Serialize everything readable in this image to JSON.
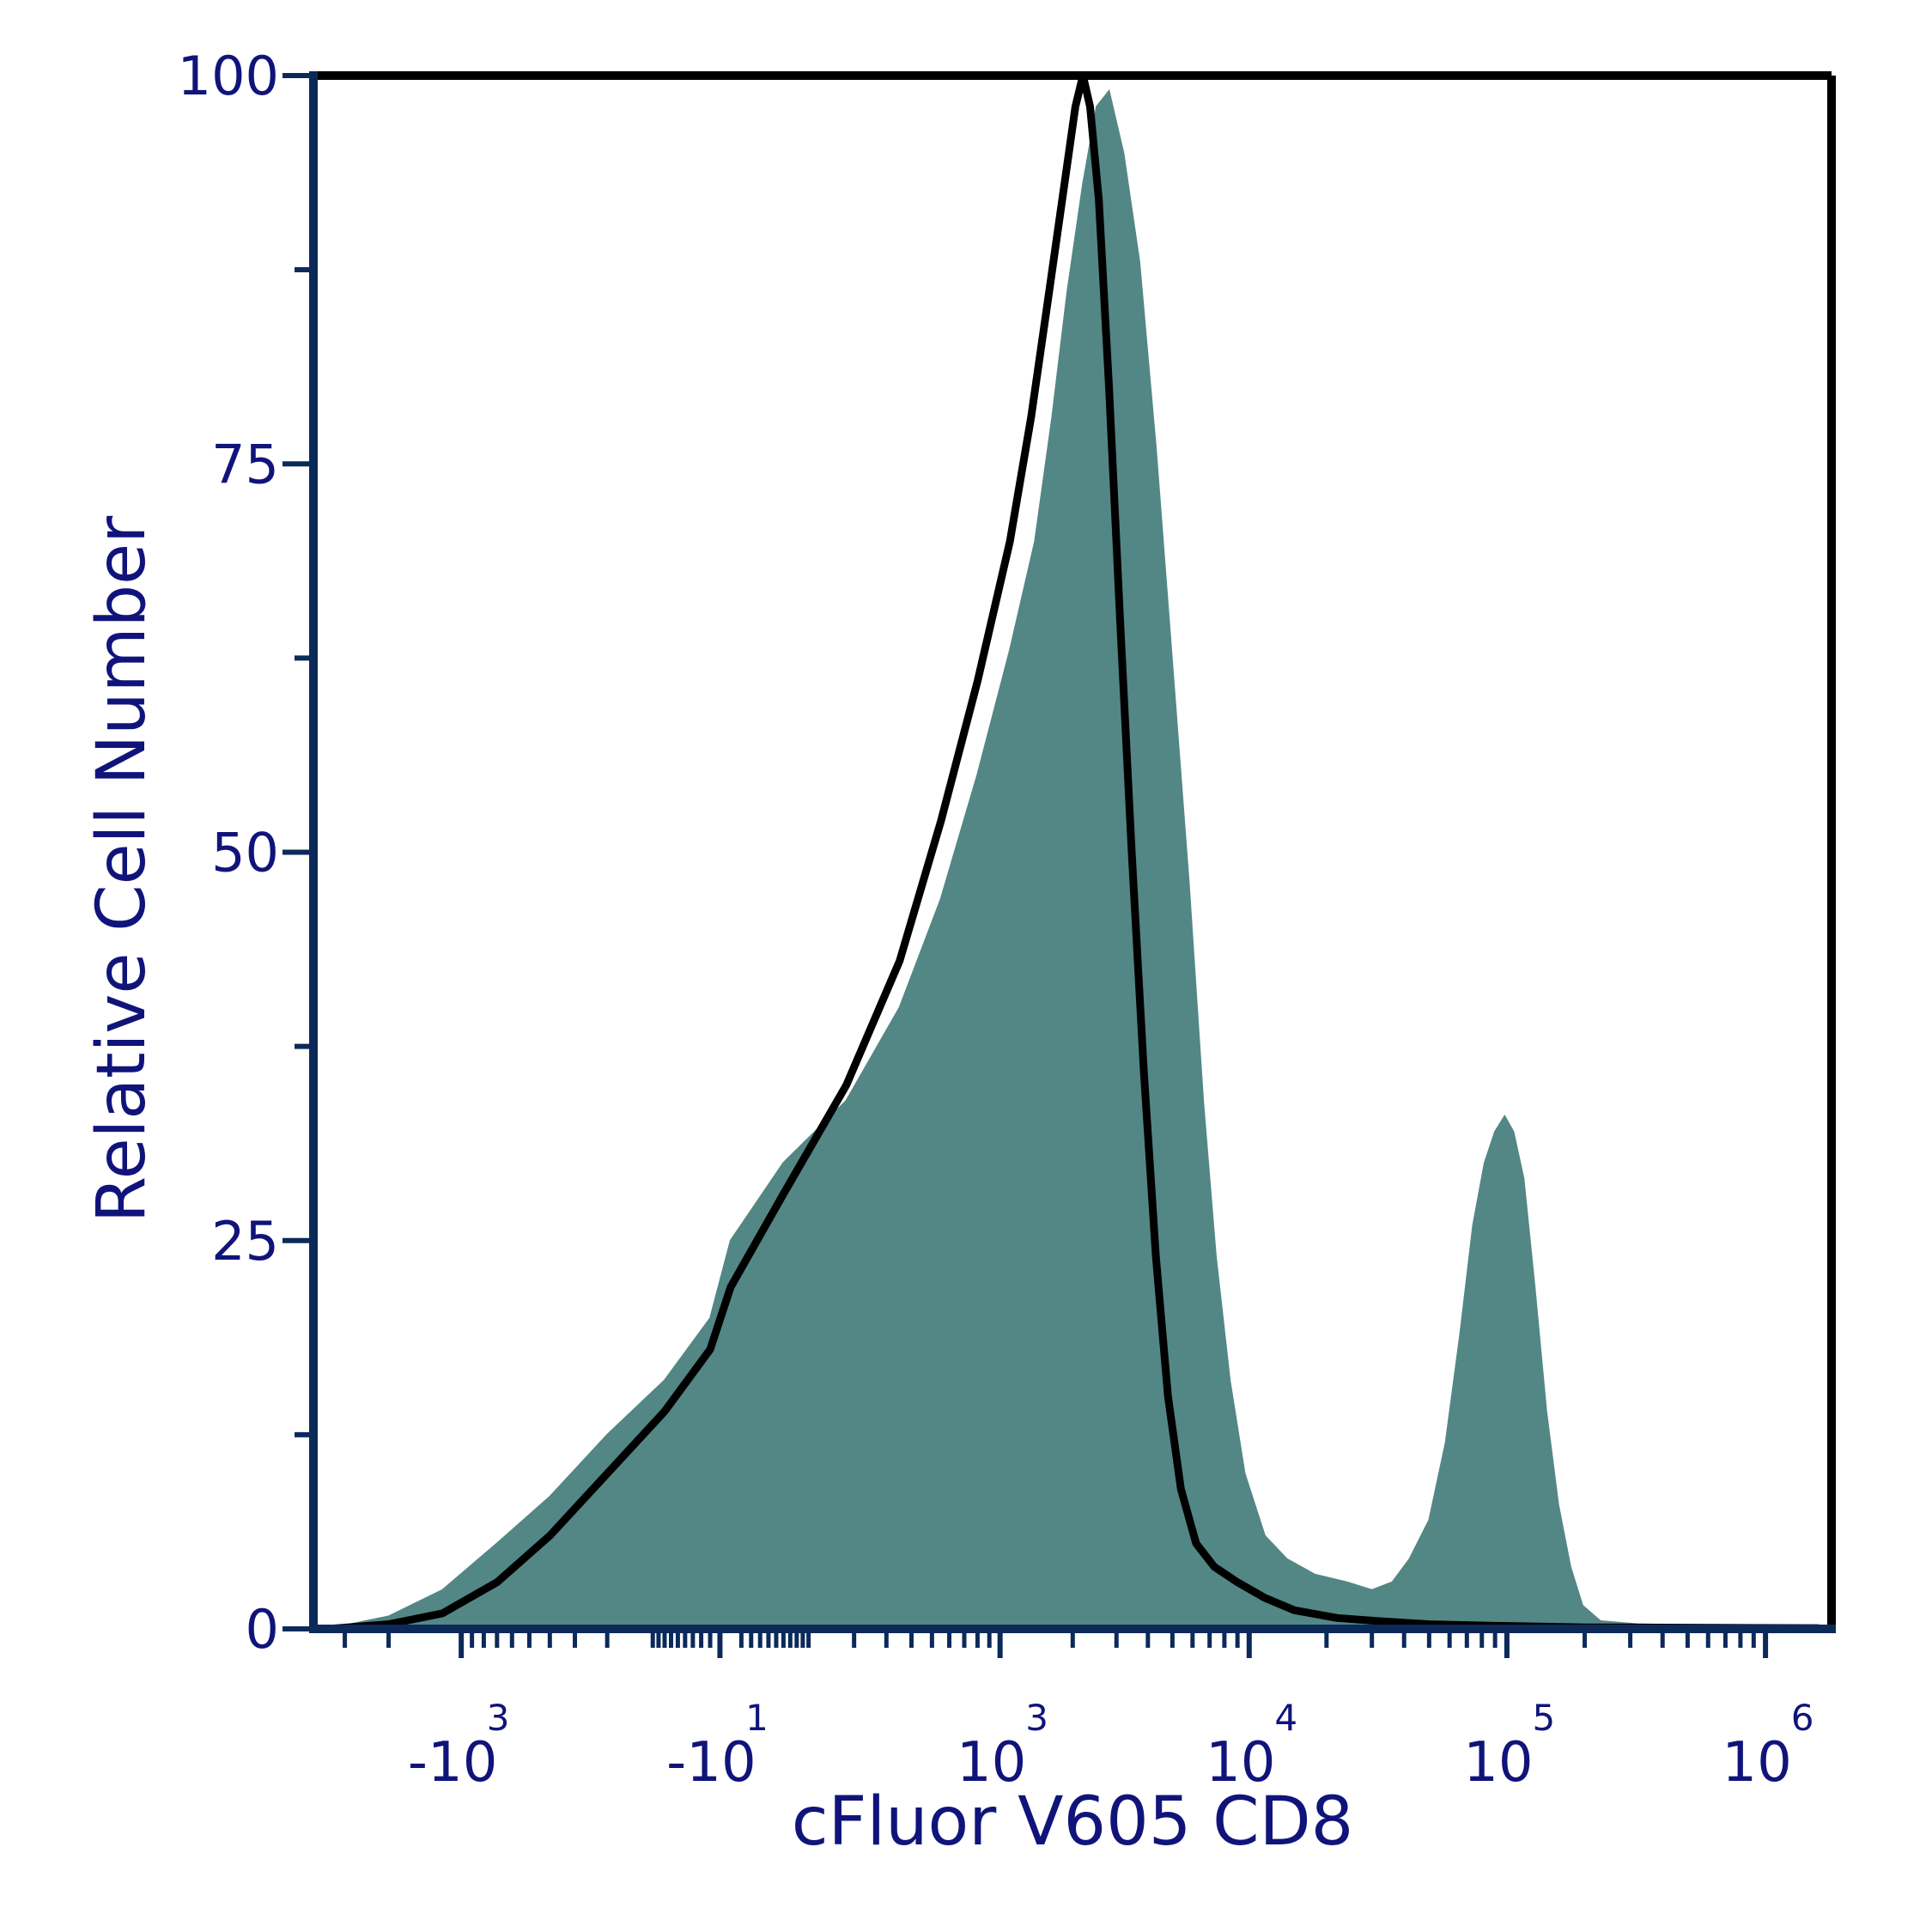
{
  "chart_data": {
    "type": "area",
    "title": "",
    "xlabel": "cFluor V605 CD8",
    "ylabel": "Relative Cell Number",
    "y_ticks": [
      "0",
      "25",
      "50",
      "75",
      "100"
    ],
    "ylim": [
      0,
      100
    ],
    "x_scale": "biexponential",
    "x_tick_labels": [
      {
        "base": "-10",
        "exp": "3"
      },
      {
        "base": "-10",
        "exp": "1"
      },
      {
        "base": "10",
        "exp": "3"
      },
      {
        "base": "10",
        "exp": "4"
      },
      {
        "base": "10",
        "exp": "5"
      },
      {
        "base": "10",
        "exp": "6"
      }
    ],
    "x_tick_values": [
      -1000,
      -10,
      1000,
      10000,
      100000,
      1000000
    ],
    "grid": false,
    "legend": "none",
    "series": [
      {
        "style": "filled",
        "color": "#528785",
        "points": [
          [
            -3500,
            0
          ],
          [
            -2000,
            0.8
          ],
          [
            -1200,
            2.5
          ],
          [
            -700,
            5.5
          ],
          [
            -400,
            8.5
          ],
          [
            -200,
            12.5
          ],
          [
            -80,
            16
          ],
          [
            -20,
            20
          ],
          [
            0,
            25
          ],
          [
            60,
            30
          ],
          [
            180,
            34
          ],
          [
            350,
            40
          ],
          [
            550,
            47
          ],
          [
            800,
            55
          ],
          [
            1100,
            63
          ],
          [
            1400,
            70
          ],
          [
            1650,
            78
          ],
          [
            1900,
            86
          ],
          [
            2200,
            93
          ],
          [
            2500,
            98
          ],
          [
            2800,
            99
          ],
          [
            3200,
            95
          ],
          [
            3700,
            88
          ],
          [
            4300,
            76
          ],
          [
            5000,
            62
          ],
          [
            5800,
            48
          ],
          [
            6600,
            34
          ],
          [
            7400,
            24
          ],
          [
            8400,
            16
          ],
          [
            9600,
            10
          ],
          [
            11500,
            6
          ],
          [
            14000,
            4.5
          ],
          [
            18000,
            3.5
          ],
          [
            24000,
            3
          ],
          [
            30000,
            2.5
          ],
          [
            36000,
            3
          ],
          [
            42000,
            4.5
          ],
          [
            50000,
            7
          ],
          [
            58000,
            12
          ],
          [
            66000,
            19
          ],
          [
            74000,
            26
          ],
          [
            82000,
            30
          ],
          [
            90000,
            32
          ],
          [
            98000,
            33
          ],
          [
            106000,
            32
          ],
          [
            116000,
            29
          ],
          [
            128000,
            22
          ],
          [
            142000,
            14
          ],
          [
            158000,
            8
          ],
          [
            176000,
            4
          ],
          [
            196000,
            1.5
          ],
          [
            230000,
            0.5
          ],
          [
            320000,
            0.3
          ],
          [
            600000,
            0.2
          ],
          [
            1600000,
            0.1
          ]
        ]
      },
      {
        "style": "line",
        "color": "#000000",
        "points": [
          [
            -3500,
            0
          ],
          [
            -2000,
            0.3
          ],
          [
            -1200,
            1
          ],
          [
            -700,
            3
          ],
          [
            -400,
            6
          ],
          [
            -200,
            10
          ],
          [
            -80,
            14
          ],
          [
            -20,
            18
          ],
          [
            0,
            22
          ],
          [
            60,
            28
          ],
          [
            180,
            35
          ],
          [
            350,
            43
          ],
          [
            550,
            52
          ],
          [
            800,
            61
          ],
          [
            1100,
            70
          ],
          [
            1350,
            78
          ],
          [
            1600,
            86
          ],
          [
            1850,
            93
          ],
          [
            2050,
            98
          ],
          [
            2200,
            100
          ],
          [
            2350,
            98
          ],
          [
            2550,
            92
          ],
          [
            2800,
            80
          ],
          [
            3100,
            65
          ],
          [
            3450,
            50
          ],
          [
            3850,
            36
          ],
          [
            4300,
            24
          ],
          [
            4800,
            15
          ],
          [
            5400,
            9
          ],
          [
            6200,
            5.5
          ],
          [
            7300,
            4
          ],
          [
            9000,
            3
          ],
          [
            11500,
            2
          ],
          [
            15000,
            1.2
          ],
          [
            22000,
            0.7
          ],
          [
            32000,
            0.5
          ],
          [
            50000,
            0.3
          ],
          [
            90000,
            0.2
          ],
          [
            200000,
            0.1
          ],
          [
            1600000,
            0.05
          ]
        ]
      }
    ]
  },
  "colors": {
    "axis_text": "#10147a",
    "axis_line": "#0b2a5a",
    "frame": "#000000",
    "fill": "#528785",
    "outline": "#000000"
  }
}
